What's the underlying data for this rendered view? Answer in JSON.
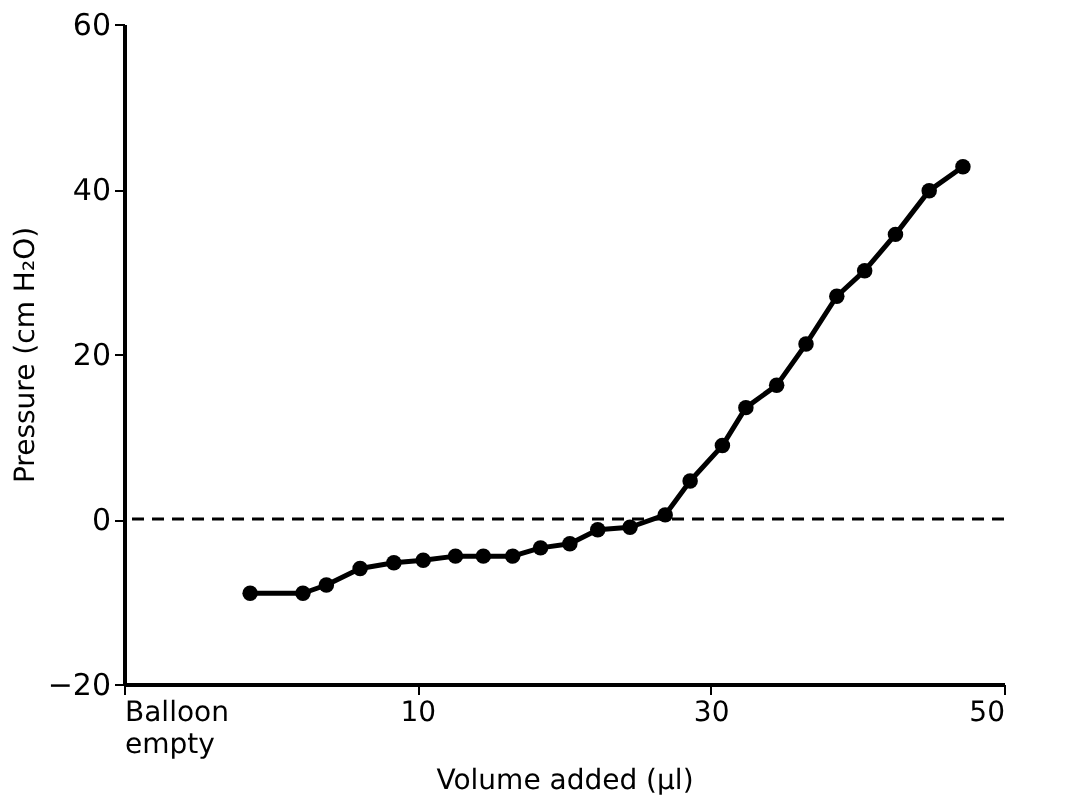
{
  "chart_data": {
    "type": "line",
    "xlabel": "Volume added (µl)",
    "ylabel": "Pressure (cm H₂O)",
    "x": [
      -1.4,
      2.2,
      3.8,
      6.1,
      8.4,
      10.4,
      12.6,
      14.5,
      16.5,
      18.4,
      20.4,
      22.3,
      24.5,
      26.9,
      28.6,
      30.8,
      32.4,
      34.5,
      36.5,
      38.6,
      40.5,
      42.6,
      44.9,
      47.2
    ],
    "series": [
      {
        "color": "#000000",
        "values": [
          -9,
          -9,
          -8,
          -6,
          -5.3,
          -5,
          -4.5,
          -4.5,
          -4.5,
          -3.5,
          -3,
          -1.3,
          -1,
          0.5,
          4.6,
          8.9,
          13.5,
          16.2,
          21.2,
          27,
          30.1,
          34.5,
          39.8,
          42.7
        ]
      }
    ],
    "xlim": [
      -10,
      50
    ],
    "xticks": [
      {
        "value": -10,
        "label": "Balloon empty"
      },
      10,
      30,
      50
    ],
    "ylim": [
      -20,
      60
    ],
    "yticks": [
      -20,
      0,
      20,
      40,
      60
    ],
    "ref_lines": [
      {
        "axis": "y",
        "value": 0,
        "line_style": "dashed",
        "color": "#000000"
      }
    ],
    "marker": "circle",
    "line_style": "solid",
    "grid": false
  }
}
